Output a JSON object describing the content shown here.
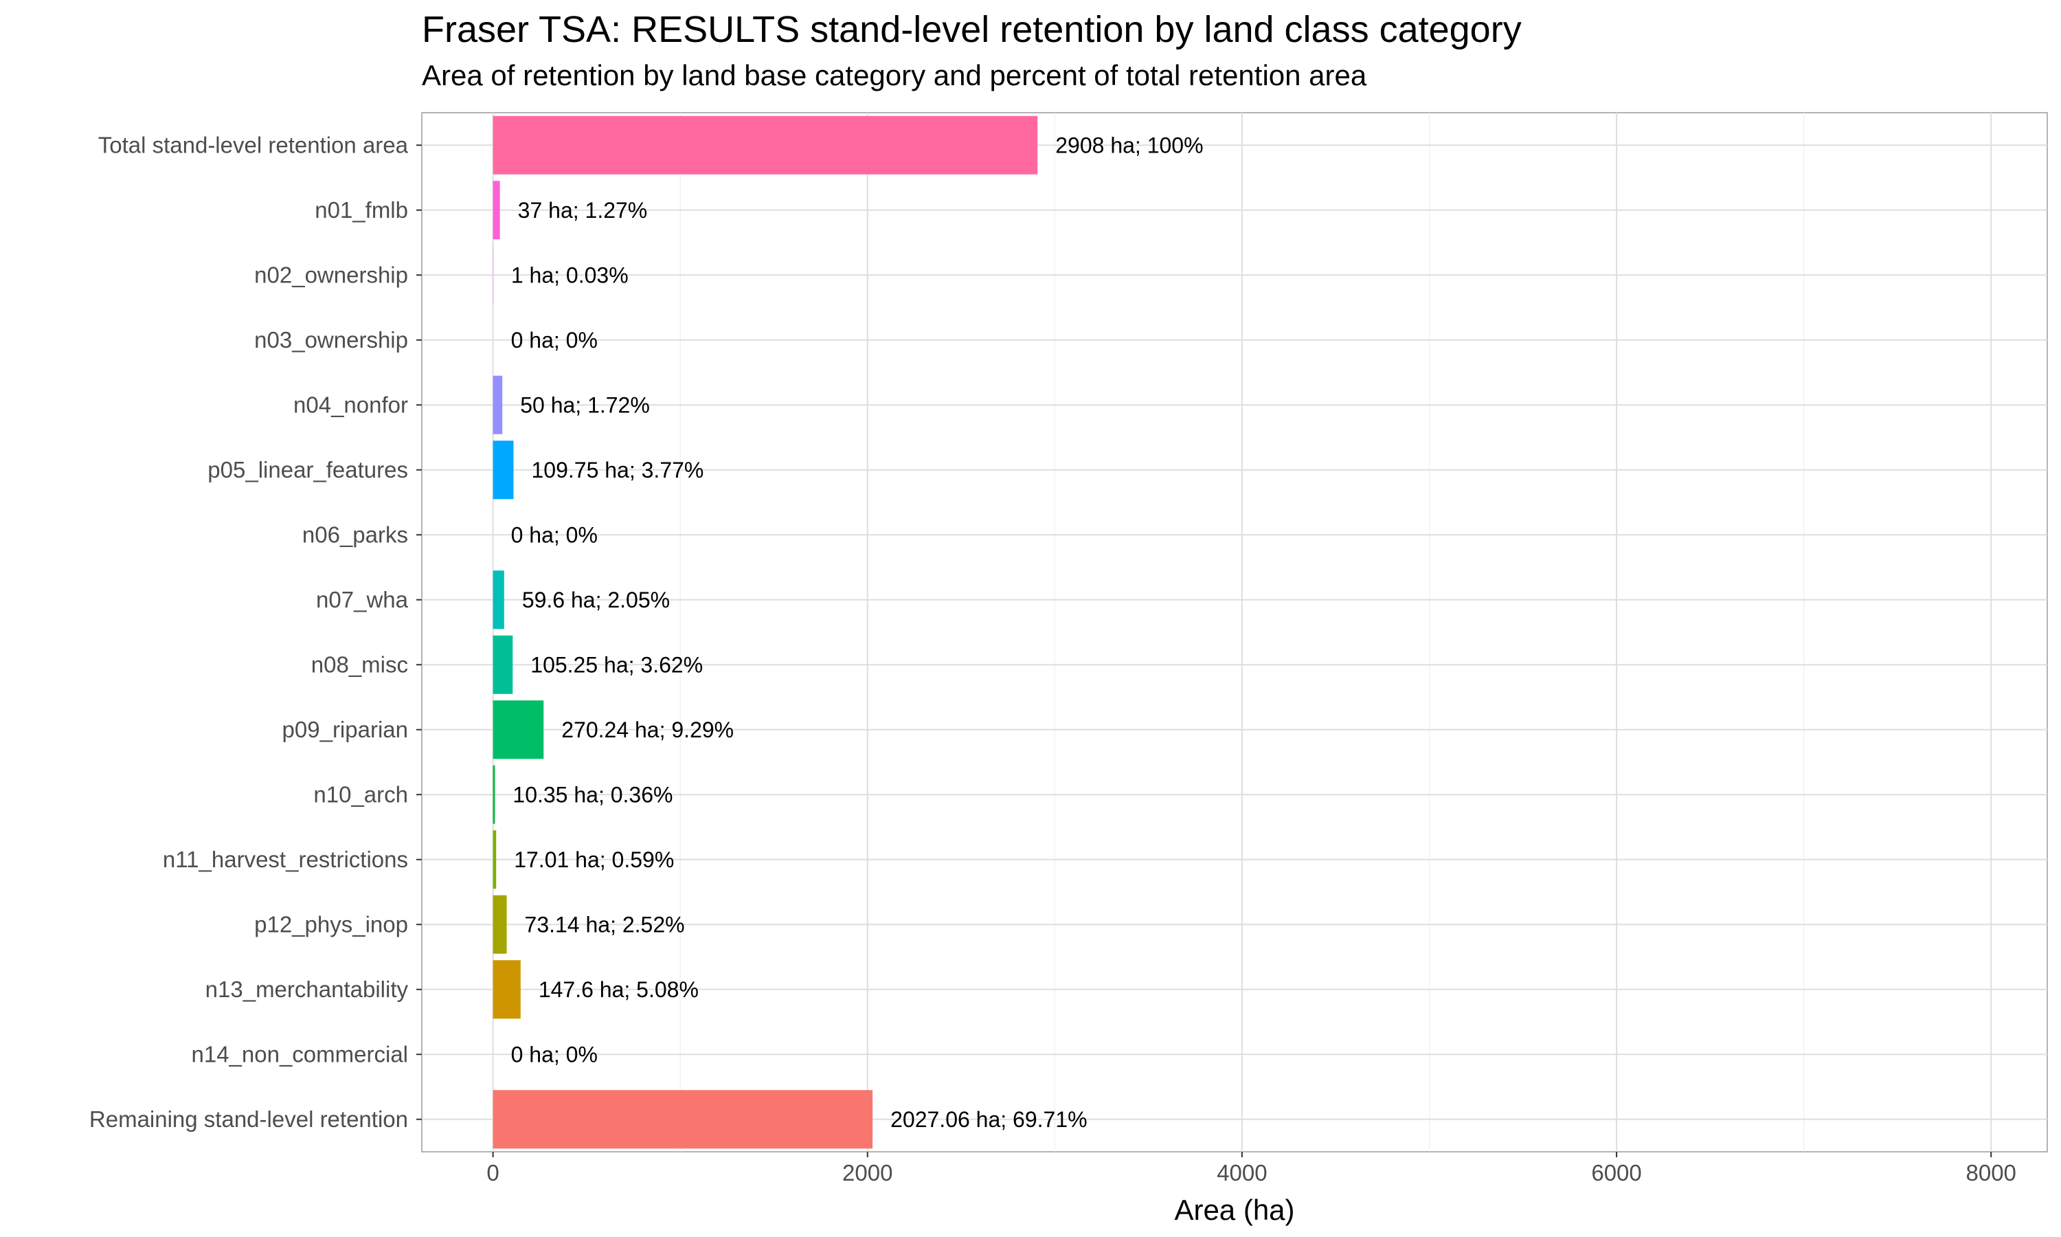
{
  "chart_data": {
    "type": "bar",
    "orientation": "horizontal",
    "title": "Fraser TSA: RESULTS stand-level retention by land class category",
    "subtitle": "Area of retention by land base category and percent of total retention area",
    "xlabel": "Area (ha)",
    "ylabel": "",
    "xlim": [
      -380,
      8300
    ],
    "x_ticks": [
      0,
      2000,
      4000,
      6000,
      8000
    ],
    "x_tick_labels": [
      "0",
      "2000",
      "4000",
      "6000",
      "8000"
    ],
    "grid": true,
    "legend": "none",
    "categories": [
      "Total stand-level retention area",
      "n01_fmlb",
      "n02_ownership",
      "n03_ownership",
      "n04_nonfor",
      "p05_linear_features",
      "n06_parks",
      "n07_wha",
      "n08_misc",
      "p09_riparian",
      "n10_arch",
      "n11_harvest_restrictions",
      "p12_phys_inop",
      "n13_merchantability",
      "n14_non_commercial",
      "Remaining stand-level retention"
    ],
    "values": [
      2908,
      37,
      1,
      0,
      50,
      109.75,
      0,
      59.6,
      105.25,
      270.24,
      10.35,
      17.01,
      73.14,
      147.6,
      0,
      2027.06
    ],
    "data_labels": [
      "2908 ha; 100%",
      "37 ha; 1.27%",
      "1 ha; 0.03%",
      "0 ha; 0%",
      "50 ha; 1.72%",
      "109.75 ha; 3.77%",
      "0 ha; 0%",
      "59.6 ha; 2.05%",
      "105.25 ha; 3.62%",
      "270.24 ha; 9.29%",
      "10.35 ha; 0.36%",
      "17.01 ha; 0.59%",
      "73.14 ha; 2.52%",
      "147.6 ha; 5.08%",
      "0 ha; 0%",
      "2027.06 ha; 69.71%"
    ],
    "colors": [
      "#FF689F",
      "#FC61D5",
      "#E76BF3",
      "#C77CFF",
      "#9590FF",
      "#00A9FF",
      "#00B8E7",
      "#00C0B8",
      "#00BF96",
      "#00BE67",
      "#00BA38",
      "#7CAE00",
      "#A3A500",
      "#CD9600",
      "#E58700",
      "#F8766D"
    ]
  }
}
